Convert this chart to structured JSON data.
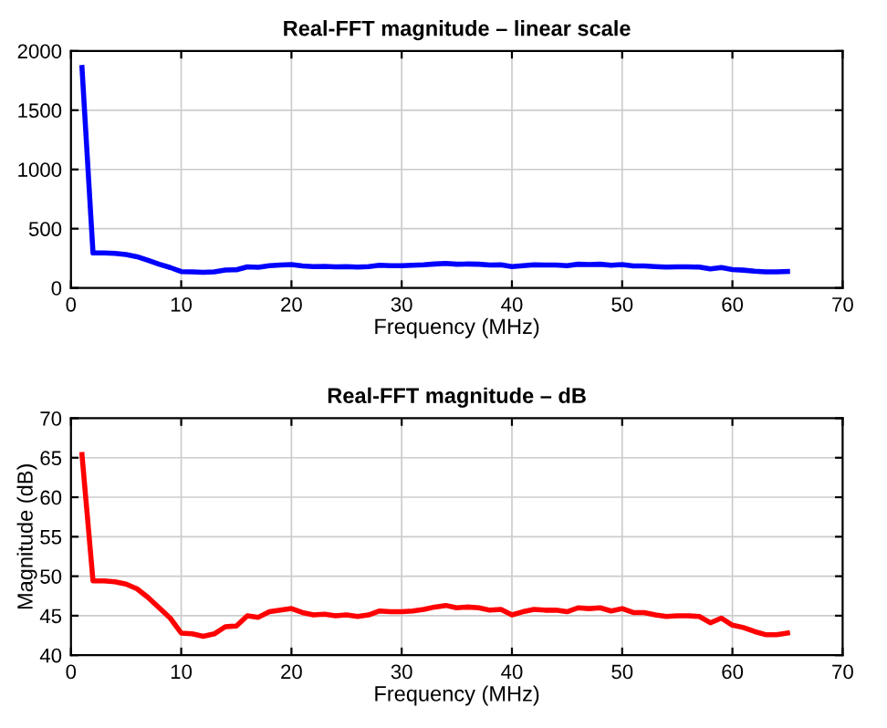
{
  "chart_data": [
    {
      "type": "line",
      "title": "Real-FFT magnitude – linear scale",
      "xlabel": "Frequency (MHz)",
      "x": [
        1,
        2,
        3,
        4,
        5,
        6,
        7,
        8,
        9,
        10,
        11,
        12,
        13,
        14,
        15,
        16,
        17,
        18,
        19,
        20,
        21,
        22,
        23,
        24,
        25,
        26,
        27,
        28,
        29,
        30,
        31,
        32,
        33,
        34,
        35,
        36,
        37,
        38,
        39,
        40,
        41,
        42,
        43,
        44,
        45,
        46,
        47,
        48,
        49,
        50,
        51,
        52,
        53,
        54,
        55,
        56,
        57,
        58,
        59,
        60,
        61,
        62,
        63,
        64,
        65
      ],
      "series": [
        {
          "color": "#0000ff",
          "values": [
            1860,
            295,
            295,
            292,
            282,
            263,
            232,
            200,
            172,
            138,
            136,
            132,
            136,
            151,
            153,
            178,
            174,
            188,
            193,
            197,
            186,
            180,
            182,
            178,
            180,
            176,
            180,
            191,
            188,
            188,
            191,
            195,
            202,
            207,
            200,
            202,
            200,
            193,
            195,
            180,
            188,
            195,
            193,
            193,
            188,
            200,
            197,
            200,
            191,
            197,
            186,
            186,
            180,
            176,
            178,
            178,
            176,
            160,
            172,
            155,
            150,
            141,
            135,
            135,
            138
          ]
        }
      ],
      "xlim": [
        0,
        70
      ],
      "xticks": [
        0,
        10,
        20,
        30,
        40,
        50,
        60,
        70
      ],
      "ylim": [
        0,
        2000
      ],
      "yticks": [
        0,
        500,
        1000,
        1500,
        2000
      ],
      "grid": true,
      "marker": "none",
      "line_style": "solid"
    },
    {
      "type": "line",
      "title": "Real-FFT magnitude – dB",
      "xlabel": "Frequency (MHz)",
      "ylabel": "Magnitude (dB)",
      "x": [
        1,
        2,
        3,
        4,
        5,
        6,
        7,
        8,
        9,
        10,
        11,
        12,
        13,
        14,
        15,
        16,
        17,
        18,
        19,
        20,
        21,
        22,
        23,
        24,
        25,
        26,
        27,
        28,
        29,
        30,
        31,
        32,
        33,
        34,
        35,
        36,
        37,
        38,
        39,
        40,
        41,
        42,
        43,
        44,
        45,
        46,
        47,
        48,
        49,
        50,
        51,
        52,
        53,
        54,
        55,
        56,
        57,
        58,
        59,
        60,
        61,
        62,
        63,
        64,
        65
      ],
      "series": [
        {
          "color": "#ff0000",
          "values": [
            65.4,
            49.4,
            49.4,
            49.3,
            49.0,
            48.4,
            47.3,
            46.0,
            44.7,
            42.8,
            42.7,
            42.4,
            42.7,
            43.6,
            43.7,
            45.0,
            44.8,
            45.5,
            45.7,
            45.9,
            45.4,
            45.1,
            45.2,
            45.0,
            45.1,
            44.9,
            45.1,
            45.6,
            45.5,
            45.5,
            45.6,
            45.8,
            46.1,
            46.3,
            46.0,
            46.1,
            46.0,
            45.7,
            45.8,
            45.1,
            45.5,
            45.8,
            45.7,
            45.7,
            45.5,
            46.0,
            45.9,
            46.0,
            45.6,
            45.9,
            45.4,
            45.4,
            45.1,
            44.9,
            45.0,
            45.0,
            44.9,
            44.1,
            44.7,
            43.8,
            43.5,
            43.0,
            42.6,
            42.6,
            42.8
          ]
        }
      ],
      "xlim": [
        0,
        70
      ],
      "xticks": [
        0,
        10,
        20,
        30,
        40,
        50,
        60,
        70
      ],
      "ylim": [
        40,
        70
      ],
      "yticks": [
        40,
        45,
        50,
        55,
        60,
        65,
        70
      ],
      "grid": true,
      "marker": "none",
      "line_style": "solid"
    }
  ]
}
